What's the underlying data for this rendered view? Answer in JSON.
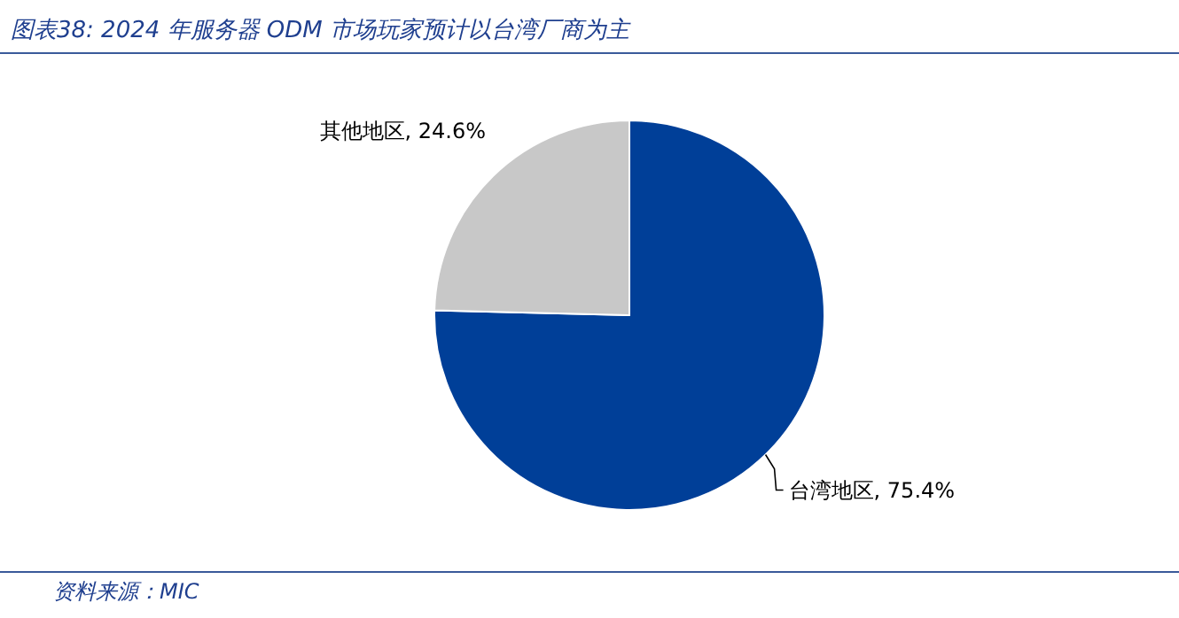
{
  "chart_data": {
    "type": "pie",
    "title": "图表38: 2024 年服务器 ODM 市场玩家预计以台湾厂商为主",
    "categories": [
      "台湾地区",
      "其他地区"
    ],
    "values": [
      75.4,
      24.6
    ],
    "colors": [
      "#003f98",
      "#c8c8c8"
    ],
    "value_labels": [
      "75.4%",
      "24.6%"
    ],
    "annotations": [
      "资料来源：MIC"
    ],
    "legend": false
  }
}
